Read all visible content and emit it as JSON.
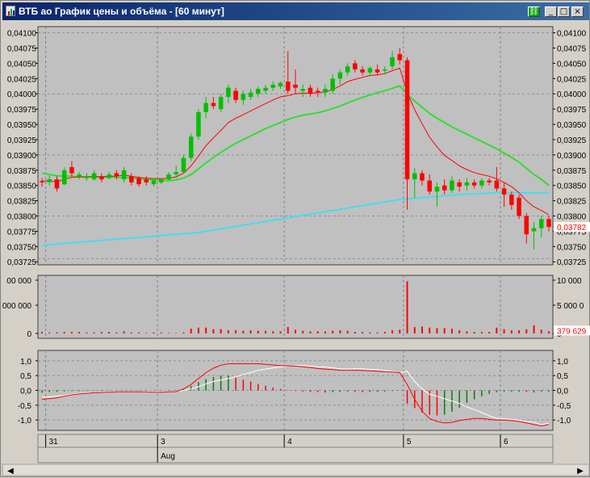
{
  "window": {
    "title": "ВТБ ао График цены и объёма - [60 минут]",
    "buttons": [
      "_",
      "□",
      "×"
    ]
  },
  "colors": {
    "plot_bg": "#c0c0c0",
    "bull": "#00c000",
    "bear": "#ff0000",
    "ma_fast": "#ff0000",
    "ma_mid": "#33dd33",
    "ma_slow": "#44ddee",
    "macd_signal": "#ffffff",
    "grid": "#808080"
  },
  "price_panel": {
    "ticks": [
      "0,04100",
      "0,04075",
      "0,04050",
      "0,04025",
      "0,04000",
      "0,03975",
      "0,03950",
      "0,03925",
      "0,03900",
      "0,03875",
      "0,03850",
      "0,03825",
      "0,03800",
      "0,03775",
      "0,03750",
      "0,03725"
    ],
    "last_value_label": "0,03782"
  },
  "volume_panel": {
    "left_ticks": [
      "00 000",
      "000 000",
      "0"
    ],
    "right_ticks": [
      "10 000",
      "5 000 0",
      "0"
    ],
    "last_value_label": "379 629"
  },
  "macd_panel": {
    "ticks": [
      "1,0",
      "0,5",
      "0,0",
      "-0,5",
      "-1,0"
    ]
  },
  "time_axis": {
    "days": [
      "31",
      "3",
      "4",
      "5",
      "6"
    ],
    "month": "Aug"
  },
  "chart_data": [
    {
      "type": "candlestick",
      "title": "",
      "ylim": [
        0.0372,
        0.0411
      ],
      "candles": [
        [
          0.03857,
          0.03862,
          0.03848,
          0.03855
        ],
        [
          0.03855,
          0.03866,
          0.0385,
          0.0386
        ],
        [
          0.0386,
          0.03865,
          0.0384,
          0.03845
        ],
        [
          0.03852,
          0.0388,
          0.0385,
          0.03875
        ],
        [
          0.0388,
          0.0389,
          0.03865,
          0.0387
        ],
        [
          0.03865,
          0.03872,
          0.0386,
          0.03868
        ],
        [
          0.03862,
          0.0387,
          0.03858,
          0.03865
        ],
        [
          0.0386,
          0.03875,
          0.03858,
          0.0387
        ],
        [
          0.03865,
          0.0387,
          0.03855,
          0.0386
        ],
        [
          0.03862,
          0.03872,
          0.0386,
          0.03868
        ],
        [
          0.0387,
          0.03875,
          0.0386,
          0.03865
        ],
        [
          0.0386,
          0.0388,
          0.03855,
          0.03875
        ],
        [
          0.03865,
          0.0387,
          0.0385,
          0.03855
        ],
        [
          0.03862,
          0.03865,
          0.03848,
          0.03852
        ],
        [
          0.0386,
          0.03865,
          0.0385,
          0.03855
        ],
        [
          0.03852,
          0.03862,
          0.03848,
          0.03858
        ],
        [
          0.03855,
          0.03862,
          0.03852,
          0.0386
        ],
        [
          0.0386,
          0.03872,
          0.03858,
          0.03868
        ],
        [
          0.03868,
          0.03882,
          0.03862,
          0.03872
        ],
        [
          0.03872,
          0.039,
          0.0387,
          0.03895
        ],
        [
          0.03895,
          0.03935,
          0.0389,
          0.0393
        ],
        [
          0.0393,
          0.03975,
          0.03925,
          0.0397
        ],
        [
          0.0397,
          0.03995,
          0.0396,
          0.03985
        ],
        [
          0.03985,
          0.03995,
          0.03975,
          0.0398
        ],
        [
          0.03975,
          0.04,
          0.0397,
          0.03995
        ],
        [
          0.03995,
          0.04015,
          0.03985,
          0.0401
        ],
        [
          0.04005,
          0.0401,
          0.03985,
          0.0399
        ],
        [
          0.0399,
          0.04005,
          0.03982,
          0.04
        ],
        [
          0.03995,
          0.04008,
          0.0399,
          0.04002
        ],
        [
          0.04,
          0.04012,
          0.03995,
          0.04008
        ],
        [
          0.04005,
          0.04015,
          0.04,
          0.0401
        ],
        [
          0.0401,
          0.0402,
          0.04005,
          0.04015
        ],
        [
          0.04012,
          0.0402,
          0.04008,
          0.04018
        ],
        [
          0.0402,
          0.0407,
          0.04,
          0.04005
        ],
        [
          0.04015,
          0.0404,
          0.04,
          0.0401
        ],
        [
          0.04005,
          0.04015,
          0.03995,
          0.04008
        ],
        [
          0.0401,
          0.04015,
          0.03995,
          0.04
        ],
        [
          0.04005,
          0.0401,
          0.03995,
          0.04003
        ],
        [
          0.04002,
          0.04015,
          0.03995,
          0.04008
        ],
        [
          0.04005,
          0.04032,
          0.04,
          0.04025
        ],
        [
          0.04025,
          0.0404,
          0.04015,
          0.04035
        ],
        [
          0.04035,
          0.0405,
          0.0403,
          0.04045
        ],
        [
          0.0405,
          0.04055,
          0.04035,
          0.0404
        ],
        [
          0.0404,
          0.04045,
          0.0403,
          0.04035
        ],
        [
          0.04035,
          0.04045,
          0.0403,
          0.04042
        ],
        [
          0.0404,
          0.04048,
          0.0403,
          0.04035
        ],
        [
          0.04038,
          0.04045,
          0.04032,
          0.0404
        ],
        [
          0.04045,
          0.0407,
          0.0404,
          0.0406
        ],
        [
          0.04065,
          0.04075,
          0.04048,
          0.04055
        ],
        [
          0.04055,
          0.0406,
          0.0381,
          0.0386
        ],
        [
          0.0386,
          0.03878,
          0.0383,
          0.0387
        ],
        [
          0.0387,
          0.03875,
          0.0385,
          0.03858
        ],
        [
          0.03858,
          0.03868,
          0.03835,
          0.0384
        ],
        [
          0.0384,
          0.03855,
          0.03815,
          0.03848
        ],
        [
          0.0385,
          0.0386,
          0.03835,
          0.03842
        ],
        [
          0.03842,
          0.03865,
          0.03838,
          0.03858
        ],
        [
          0.03855,
          0.0386,
          0.0384,
          0.03848
        ],
        [
          0.0385,
          0.03862,
          0.03842,
          0.03855
        ],
        [
          0.03855,
          0.0386,
          0.03845,
          0.0385
        ],
        [
          0.0385,
          0.03862,
          0.03845,
          0.03858
        ],
        [
          0.03858,
          0.03862,
          0.0385,
          0.03855
        ],
        [
          0.03858,
          0.0388,
          0.0384,
          0.03845
        ],
        [
          0.03845,
          0.03855,
          0.03815,
          0.03835
        ],
        [
          0.03835,
          0.0384,
          0.0381,
          0.03818
        ],
        [
          0.0383,
          0.03835,
          0.03795,
          0.038
        ],
        [
          0.038,
          0.03805,
          0.03755,
          0.0377
        ],
        [
          0.03775,
          0.0379,
          0.03745,
          0.0378
        ],
        [
          0.0378,
          0.038,
          0.03765,
          0.03795
        ],
        [
          0.03795,
          0.038,
          0.03775,
          0.03782
        ]
      ],
      "ma_fast": [
        0.03857,
        0.03858,
        0.03856,
        0.0386,
        0.03863,
        0.03864,
        0.03864,
        0.03865,
        0.03864,
        0.03865,
        0.03865,
        0.03867,
        0.03865,
        0.03863,
        0.03862,
        0.03861,
        0.03861,
        0.03862,
        0.03864,
        0.0387,
        0.03882,
        0.03898,
        0.03915,
        0.03928,
        0.0394,
        0.03953,
        0.0396,
        0.03966,
        0.03972,
        0.03978,
        0.03984,
        0.0399,
        0.03995,
        0.03997,
        0.04,
        0.04001,
        0.04001,
        0.04002,
        0.04003,
        0.04007,
        0.04013,
        0.0402,
        0.04024,
        0.04027,
        0.0403,
        0.04031,
        0.04033,
        0.04038,
        0.04042,
        0.04002,
        0.03974,
        0.03951,
        0.03929,
        0.03913,
        0.03899,
        0.03891,
        0.03882,
        0.03876,
        0.03871,
        0.03868,
        0.03865,
        0.03861,
        0.03855,
        0.03848,
        0.03838,
        0.03825,
        0.03815,
        0.03809,
        0.03802
      ],
      "ma_mid": [
        0.0387,
        0.03868,
        0.03866,
        0.03865,
        0.03865,
        0.03864,
        0.03864,
        0.03864,
        0.03864,
        0.03864,
        0.03863,
        0.03863,
        0.03862,
        0.03861,
        0.0386,
        0.03859,
        0.03858,
        0.03858,
        0.03859,
        0.03862,
        0.03868,
        0.03877,
        0.03887,
        0.03896,
        0.03904,
        0.03912,
        0.03919,
        0.03925,
        0.03931,
        0.03937,
        0.03943,
        0.03948,
        0.03953,
        0.03958,
        0.03962,
        0.03965,
        0.03967,
        0.03969,
        0.03972,
        0.03976,
        0.0398,
        0.03985,
        0.0399,
        0.03994,
        0.03998,
        0.04002,
        0.04005,
        0.04009,
        0.04013,
        0.04,
        0.03988,
        0.03978,
        0.03968,
        0.0396,
        0.03953,
        0.03946,
        0.0394,
        0.03934,
        0.03928,
        0.03922,
        0.03916,
        0.0391,
        0.03903,
        0.03896,
        0.03888,
        0.03878,
        0.03868,
        0.0386,
        0.0385
      ],
      "ma_slow": [
        0.03752,
        0.03753,
        0.03754,
        0.03755,
        0.03756,
        0.03757,
        0.03758,
        0.03759,
        0.0376,
        0.03761,
        0.03762,
        0.03763,
        0.03764,
        0.03765,
        0.03766,
        0.03767,
        0.03768,
        0.03769,
        0.0377,
        0.03771,
        0.03772,
        0.03773,
        0.03775,
        0.03777,
        0.03779,
        0.03781,
        0.03783,
        0.03785,
        0.03787,
        0.03789,
        0.03791,
        0.03793,
        0.03795,
        0.03797,
        0.03799,
        0.03801,
        0.03803,
        0.03805,
        0.03807,
        0.03809,
        0.03811,
        0.03813,
        0.03815,
        0.03817,
        0.03819,
        0.03821,
        0.03823,
        0.03825,
        0.03827,
        0.03828,
        0.03829,
        0.0383,
        0.03831,
        0.03832,
        0.03833,
        0.03834,
        0.03835,
        0.03836,
        0.03836,
        0.03837,
        0.03837,
        0.03838,
        0.03838,
        0.03838,
        0.03838,
        0.03838,
        0.03838,
        0.03838,
        0.03838
      ]
    },
    {
      "type": "bar",
      "title": "",
      "ylim": [
        0,
        100000000
      ],
      "values": [
        3000000,
        2000000,
        2000000,
        3000000,
        3000000,
        3000000,
        2000000,
        2000000,
        3000000,
        3000000,
        2000000,
        4000000,
        2000000,
        2000000,
        1000000,
        2000000,
        2000000,
        1000000,
        1000000,
        2000000,
        9000000,
        11000000,
        11000000,
        8000000,
        8000000,
        6000000,
        6000000,
        5000000,
        6000000,
        5000000,
        5000000,
        4000000,
        4000000,
        12000000,
        7000000,
        5000000,
        4000000,
        4000000,
        4000000,
        5000000,
        6000000,
        5000000,
        3000000,
        3000000,
        2000000,
        2000000,
        3000000,
        6000000,
        7000000,
        98000000,
        12000000,
        13000000,
        11000000,
        10000000,
        10000000,
        9000000,
        6000000,
        4000000,
        3000000,
        3000000,
        3000000,
        11000000,
        8000000,
        6000000,
        6000000,
        8000000,
        15000000,
        7000000,
        4000000
      ]
    },
    {
      "type": "line",
      "title": "",
      "ylim": [
        -1.35,
        1.35
      ],
      "histogram": [
        -0.08,
        -0.06,
        -0.05,
        -0.03,
        -0.02,
        -0.02,
        -0.01,
        -0.01,
        -0.01,
        -0.01,
        -0.01,
        0.0,
        -0.01,
        -0.01,
        -0.02,
        -0.02,
        -0.02,
        -0.01,
        -0.01,
        0.05,
        0.15,
        0.28,
        0.38,
        0.45,
        0.5,
        0.5,
        0.44,
        0.36,
        0.3,
        0.22,
        0.16,
        0.1,
        0.05,
        0.01,
        -0.02,
        -0.04,
        -0.05,
        -0.06,
        -0.07,
        -0.06,
        -0.05,
        -0.04,
        -0.05,
        -0.06,
        -0.05,
        -0.05,
        -0.04,
        -0.02,
        0.0,
        -0.45,
        -0.6,
        -0.75,
        -0.82,
        -0.85,
        -0.82,
        -0.72,
        -0.58,
        -0.42,
        -0.3,
        -0.2,
        -0.12,
        -0.06,
        -0.04,
        -0.04,
        -0.04,
        -0.05,
        -0.07,
        -0.04,
        -0.04
      ],
      "macd": [
        -0.3,
        -0.28,
        -0.25,
        -0.2,
        -0.15,
        -0.12,
        -0.1,
        -0.08,
        -0.07,
        -0.06,
        -0.05,
        -0.05,
        -0.05,
        -0.05,
        -0.05,
        -0.06,
        -0.06,
        -0.05,
        -0.04,
        0.05,
        0.2,
        0.4,
        0.6,
        0.75,
        0.85,
        0.9,
        0.9,
        0.9,
        0.9,
        0.9,
        0.88,
        0.86,
        0.84,
        0.83,
        0.82,
        0.8,
        0.77,
        0.74,
        0.72,
        0.7,
        0.68,
        0.68,
        0.68,
        0.67,
        0.66,
        0.65,
        0.63,
        0.62,
        0.6,
        0.2,
        -0.3,
        -0.7,
        -0.95,
        -1.05,
        -1.1,
        -1.08,
        -1.02,
        -0.98,
        -0.95,
        -0.95,
        -0.98,
        -1.0,
        -1.0,
        -1.02,
        -1.05,
        -1.1,
        -1.15,
        -1.2,
        -1.15
      ],
      "signal": [
        -0.22,
        -0.22,
        -0.2,
        -0.17,
        -0.13,
        -0.1,
        -0.09,
        -0.07,
        -0.06,
        -0.05,
        -0.04,
        -0.05,
        -0.04,
        -0.04,
        -0.03,
        -0.04,
        -0.04,
        -0.04,
        -0.03,
        0.0,
        0.05,
        0.12,
        0.22,
        0.3,
        0.35,
        0.4,
        0.46,
        0.54,
        0.6,
        0.68,
        0.72,
        0.76,
        0.79,
        0.82,
        0.84,
        0.84,
        0.82,
        0.8,
        0.79,
        0.76,
        0.73,
        0.72,
        0.73,
        0.73,
        0.71,
        0.7,
        0.67,
        0.64,
        0.6,
        0.65,
        0.3,
        0.05,
        -0.13,
        -0.2,
        -0.28,
        -0.36,
        -0.44,
        -0.56,
        -0.65,
        -0.75,
        -0.86,
        -0.94,
        -0.96,
        -0.98,
        -1.01,
        -1.05,
        -1.08,
        -1.16,
        -1.11
      ]
    }
  ]
}
